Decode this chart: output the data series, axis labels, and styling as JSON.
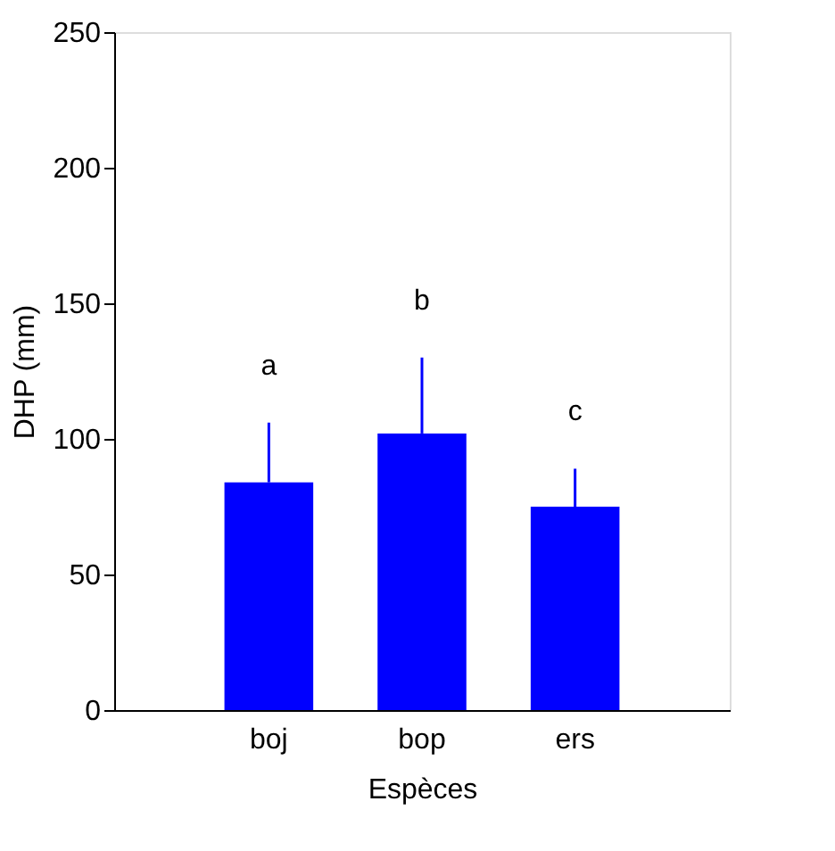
{
  "chart_data": {
    "type": "bar",
    "xlabel": "Espèces",
    "ylabel": "DHP (mm)",
    "categories": [
      "boj",
      "bop",
      "ers"
    ],
    "values": [
      84,
      102,
      75
    ],
    "errors": [
      [
        84,
        106
      ],
      [
        102,
        130
      ],
      [
        75,
        89
      ]
    ],
    "color": "#0000ff",
    "ylim": [
      0,
      250
    ],
    "yticks": [
      0,
      50,
      100,
      150,
      200,
      250
    ],
    "grid": false,
    "annotations": [
      "a",
      "b",
      "c"
    ]
  }
}
